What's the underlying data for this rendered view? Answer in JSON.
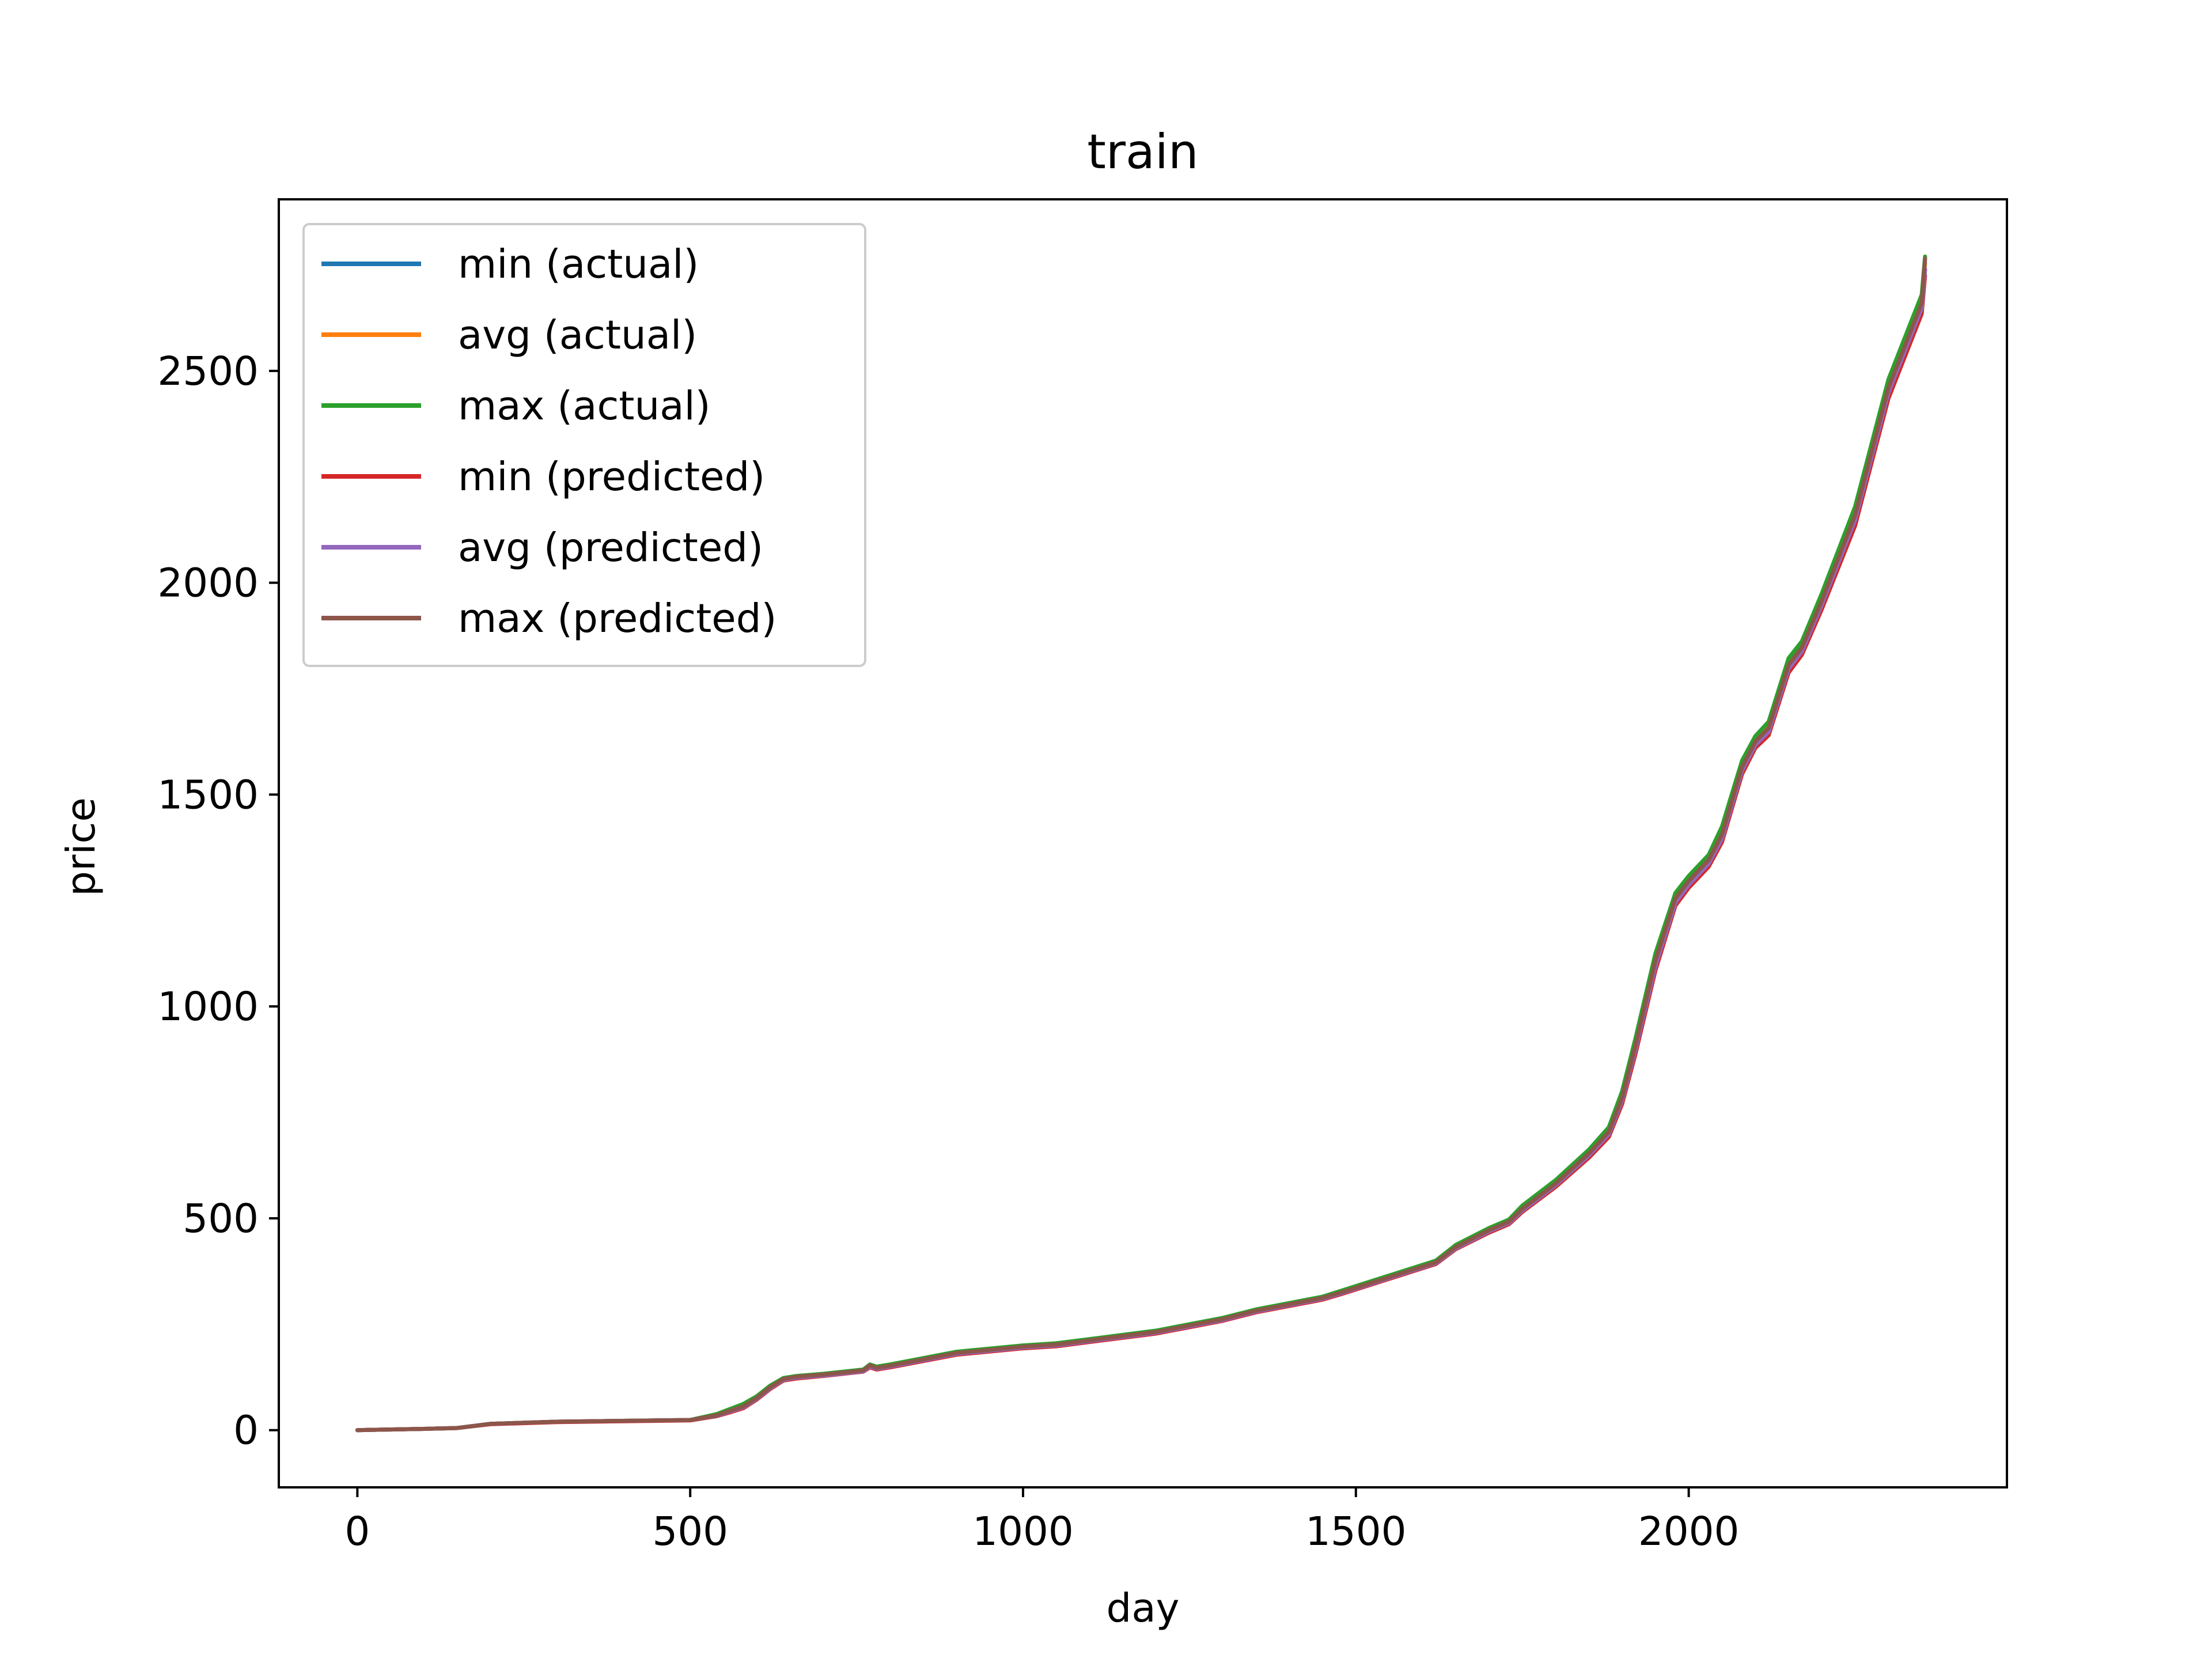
{
  "chart_data": {
    "type": "line",
    "title": "train",
    "xlabel": "day",
    "ylabel": "price",
    "xlim": [
      -118,
      2478
    ],
    "ylim": [
      -135,
      2905
    ],
    "xticks": [
      0,
      500,
      1000,
      1500,
      2000
    ],
    "yticks": [
      0,
      500,
      1000,
      1500,
      2000,
      2500
    ],
    "grid": false,
    "legend_position": "upper-left",
    "series": [
      {
        "name": "min (actual)",
        "color": "#1f77b4",
        "x": [
          0,
          100,
          150,
          200,
          300,
          400,
          500,
          540,
          560,
          580,
          600,
          620,
          640,
          660,
          700,
          760,
          770,
          780,
          800,
          850,
          900,
          1000,
          1050,
          1100,
          1150,
          1200,
          1250,
          1300,
          1350,
          1400,
          1450,
          1480,
          1500,
          1550,
          1600,
          1620,
          1650,
          1700,
          1730,
          1750,
          1800,
          1850,
          1880,
          1900,
          1920,
          1950,
          1980,
          2000,
          2030,
          2050,
          2080,
          2100,
          2120,
          2150,
          2170,
          2200,
          2250,
          2300,
          2350,
          2355
        ],
        "y": [
          0,
          3,
          5,
          15,
          20,
          22,
          24,
          35,
          45,
          55,
          75,
          100,
          120,
          125,
          130,
          140,
          150,
          145,
          150,
          165,
          180,
          195,
          200,
          210,
          220,
          230,
          245,
          260,
          280,
          295,
          310,
          325,
          335,
          360,
          385,
          395,
          430,
          470,
          490,
          520,
          580,
          650,
          700,
          780,
          900,
          1100,
          1250,
          1290,
          1340,
          1400,
          1560,
          1620,
          1650,
          1800,
          1840,
          1950,
          2150,
          2450,
          2650,
          2740
        ]
      },
      {
        "name": "avg (actual)",
        "color": "#ff7f0e",
        "x": [
          0,
          100,
          150,
          200,
          300,
          400,
          500,
          540,
          560,
          580,
          600,
          620,
          640,
          660,
          700,
          760,
          770,
          780,
          800,
          850,
          900,
          1000,
          1050,
          1100,
          1150,
          1200,
          1250,
          1300,
          1350,
          1400,
          1450,
          1480,
          1500,
          1550,
          1600,
          1620,
          1650,
          1700,
          1730,
          1750,
          1800,
          1850,
          1880,
          1900,
          1920,
          1950,
          1980,
          2000,
          2030,
          2050,
          2080,
          2100,
          2120,
          2150,
          2170,
          2200,
          2250,
          2300,
          2350,
          2355
        ],
        "y": [
          0,
          3,
          5,
          15,
          20,
          22,
          24,
          36,
          46,
          56,
          77,
          102,
          121,
          126,
          131,
          141,
          152,
          147,
          152,
          167,
          182,
          197,
          202,
          212,
          222,
          232,
          247,
          262,
          282,
          297,
          312,
          327,
          337,
          362,
          387,
          397,
          433,
          473,
          493,
          524,
          584,
          655,
          706,
          787,
          910,
          1110,
          1258,
          1298,
          1348,
          1410,
          1568,
          1628,
          1660,
          1810,
          1850,
          1962,
          2165,
          2465,
          2665,
          2755
        ]
      },
      {
        "name": "max (actual)",
        "color": "#2ca02c",
        "x": [
          0,
          100,
          150,
          200,
          300,
          400,
          500,
          540,
          560,
          580,
          600,
          620,
          640,
          660,
          700,
          760,
          770,
          780,
          800,
          850,
          900,
          1000,
          1050,
          1100,
          1150,
          1200,
          1250,
          1300,
          1350,
          1400,
          1450,
          1480,
          1500,
          1550,
          1600,
          1620,
          1650,
          1700,
          1730,
          1750,
          1800,
          1850,
          1880,
          1900,
          1920,
          1950,
          1980,
          2000,
          2030,
          2050,
          2080,
          2100,
          2120,
          2150,
          2170,
          2200,
          2250,
          2300,
          2350,
          2355
        ],
        "y": [
          0,
          3,
          5,
          15,
          20,
          22,
          24,
          38,
          50,
          62,
          80,
          105,
          123,
          128,
          133,
          143,
          155,
          150,
          155,
          170,
          185,
          200,
          205,
          215,
          225,
          235,
          250,
          265,
          285,
          300,
          315,
          330,
          340,
          365,
          390,
          400,
          437,
          477,
          497,
          530,
          590,
          662,
          715,
          800,
          925,
          1125,
          1268,
          1308,
          1358,
          1425,
          1580,
          1638,
          1672,
          1822,
          1862,
          1975,
          2180,
          2480,
          2680,
          2770
        ]
      },
      {
        "name": "min (predicted)",
        "color": "#d62728",
        "x": [
          0,
          100,
          150,
          200,
          300,
          400,
          500,
          540,
          560,
          580,
          600,
          620,
          640,
          660,
          700,
          760,
          770,
          780,
          800,
          850,
          900,
          1000,
          1050,
          1100,
          1150,
          1200,
          1250,
          1300,
          1350,
          1400,
          1450,
          1480,
          1500,
          1550,
          1600,
          1620,
          1650,
          1700,
          1730,
          1750,
          1800,
          1850,
          1880,
          1900,
          1920,
          1950,
          1980,
          2000,
          2030,
          2050,
          2080,
          2100,
          2120,
          2150,
          2170,
          2200,
          2250,
          2300,
          2350,
          2355
        ],
        "y": [
          0,
          3,
          5,
          14,
          19,
          21,
          23,
          33,
          42,
          52,
          72,
          97,
          117,
          122,
          128,
          138,
          148,
          143,
          148,
          163,
          178,
          193,
          198,
          208,
          218,
          228,
          243,
          258,
          278,
          293,
          308,
          322,
          332,
          357,
          382,
          392,
          427,
          466,
          486,
          515,
          574,
          643,
          692,
          770,
          888,
          1085,
          1238,
          1280,
          1330,
          1388,
          1548,
          1610,
          1640,
          1788,
          1830,
          1938,
          2135,
          2435,
          2635,
          2725
        ]
      },
      {
        "name": "avg (predicted)",
        "color": "#9467bd",
        "x": [
          0,
          100,
          150,
          200,
          300,
          400,
          500,
          540,
          560,
          580,
          600,
          620,
          640,
          660,
          700,
          760,
          770,
          780,
          800,
          850,
          900,
          1000,
          1050,
          1100,
          1150,
          1200,
          1250,
          1300,
          1350,
          1400,
          1450,
          1480,
          1500,
          1550,
          1600,
          1620,
          1650,
          1700,
          1730,
          1750,
          1800,
          1850,
          1880,
          1900,
          1920,
          1950,
          1980,
          2000,
          2030,
          2050,
          2080,
          2100,
          2120,
          2150,
          2170,
          2200,
          2250,
          2300,
          2350,
          2355
        ],
        "y": [
          0,
          3,
          5,
          15,
          20,
          22,
          24,
          34,
          44,
          54,
          74,
          99,
          119,
          124,
          129,
          139,
          150,
          145,
          150,
          165,
          180,
          195,
          200,
          210,
          220,
          230,
          245,
          260,
          280,
          295,
          310,
          324,
          334,
          359,
          384,
          394,
          429,
          469,
          489,
          518,
          578,
          648,
          698,
          778,
          898,
          1095,
          1245,
          1287,
          1337,
          1396,
          1556,
          1617,
          1648,
          1797,
          1838,
          1948,
          2148,
          2448,
          2648,
          2740
        ]
      },
      {
        "name": "max (predicted)",
        "color": "#8c564b",
        "x": [
          0,
          100,
          150,
          200,
          300,
          400,
          500,
          540,
          560,
          580,
          600,
          620,
          640,
          660,
          700,
          760,
          770,
          780,
          800,
          850,
          900,
          1000,
          1050,
          1100,
          1150,
          1200,
          1250,
          1300,
          1350,
          1400,
          1450,
          1480,
          1500,
          1550,
          1600,
          1620,
          1650,
          1700,
          1730,
          1750,
          1800,
          1850,
          1880,
          1900,
          1920,
          1950,
          1980,
          2000,
          2030,
          2050,
          2080,
          2100,
          2120,
          2150,
          2170,
          2200,
          2250,
          2300,
          2350,
          2355
        ],
        "y": [
          0,
          3,
          5,
          15,
          20,
          22,
          24,
          35,
          46,
          56,
          76,
          101,
          121,
          126,
          131,
          141,
          153,
          147,
          152,
          167,
          182,
          197,
          202,
          212,
          222,
          232,
          247,
          262,
          282,
          297,
          312,
          326,
          336,
          361,
          386,
          396,
          432,
          472,
          492,
          522,
          582,
          653,
          704,
          785,
          908,
          1108,
          1255,
          1296,
          1346,
          1406,
          1565,
          1625,
          1657,
          1806,
          1847,
          1958,
          2160,
          2460,
          2660,
          2765
        ]
      }
    ]
  }
}
